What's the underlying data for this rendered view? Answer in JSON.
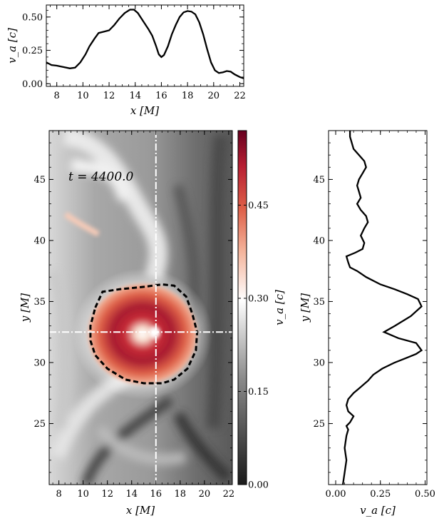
{
  "chart_data": [
    {
      "id": "top",
      "type": "line",
      "xlabel": "x [M]",
      "ylabel": "v_a [c]",
      "xlim": [
        7.2,
        22.3
      ],
      "ylim": [
        -0.02,
        0.59
      ],
      "xticks": [
        8,
        10,
        12,
        14,
        16,
        18,
        20,
        22
      ],
      "xtick_labels": [
        "8",
        "10",
        "12",
        "14",
        "16",
        "18",
        "20",
        "22"
      ],
      "yticks": [
        0.0,
        0.25,
        0.5
      ],
      "ytick_labels": [
        "0.00",
        "0.25",
        "0.50"
      ],
      "series": [
        {
          "x": [
            7.2,
            7.6,
            8.0,
            8.5,
            9.0,
            9.4,
            9.8,
            10.2,
            10.5,
            10.9,
            11.2,
            11.6,
            12.0,
            12.4,
            12.8,
            13.2,
            13.6,
            13.9,
            14.2,
            14.6,
            15.0,
            15.3,
            15.6,
            15.8,
            16.0,
            16.2,
            16.5,
            16.8,
            17.1,
            17.4,
            17.7,
            18.0,
            18.3,
            18.6,
            18.9,
            19.2,
            19.5,
            19.8,
            20.1,
            20.4,
            20.7,
            21.0,
            21.3,
            21.6,
            22.0,
            22.3
          ],
          "y": [
            0.16,
            0.14,
            0.135,
            0.125,
            0.115,
            0.12,
            0.16,
            0.22,
            0.28,
            0.34,
            0.38,
            0.39,
            0.4,
            0.44,
            0.49,
            0.53,
            0.555,
            0.555,
            0.53,
            0.47,
            0.41,
            0.36,
            0.28,
            0.22,
            0.2,
            0.215,
            0.28,
            0.37,
            0.44,
            0.5,
            0.535,
            0.545,
            0.54,
            0.52,
            0.46,
            0.37,
            0.26,
            0.16,
            0.1,
            0.08,
            0.085,
            0.095,
            0.09,
            0.07,
            0.05,
            0.04
          ]
        }
      ]
    },
    {
      "id": "main",
      "type": "heatmap",
      "xlabel": "x [M]",
      "ylabel": "y [M]",
      "xlim": [
        7.2,
        22.3
      ],
      "ylim": [
        20.0,
        49.0
      ],
      "xticks": [
        8,
        10,
        12,
        14,
        16,
        18,
        20,
        22
      ],
      "xtick_labels": [
        "8",
        "10",
        "12",
        "14",
        "16",
        "18",
        "20",
        "22"
      ],
      "yticks": [
        25,
        30,
        35,
        40,
        45
      ],
      "ytick_labels": [
        "25",
        "30",
        "35",
        "40",
        "45"
      ],
      "annotation": "t = 4400.0",
      "crosshair": {
        "x": 16.0,
        "y": 32.5
      },
      "contour": {
        "x": [
          11.0,
          11.6,
          13.0,
          15.0,
          16.5,
          17.5,
          18.5,
          19.0,
          19.4,
          19.3,
          18.6,
          17.5,
          16.5,
          15.0,
          13.5,
          12.0,
          11.0,
          10.6,
          10.6,
          11.0
        ],
        "y": [
          34.5,
          35.8,
          36.0,
          36.2,
          36.4,
          36.3,
          35.4,
          34.0,
          32.5,
          31.0,
          29.5,
          28.6,
          28.3,
          28.3,
          28.6,
          29.5,
          30.6,
          31.8,
          33.0,
          34.5
        ]
      }
    },
    {
      "id": "colorbar",
      "type": "colorbar",
      "label": "v_a [c]",
      "lim": [
        0.0,
        0.57
      ],
      "ticks": [
        0.0,
        0.15,
        0.3,
        0.45
      ],
      "tick_labels": [
        "0.00",
        "0.15",
        "0.30",
        "0.45"
      ],
      "colors": [
        "#1a1a1a",
        "#7a7a7a",
        "#ffffff",
        "#f2a888",
        "#de5f48",
        "#b71e32",
        "#67001f"
      ]
    },
    {
      "id": "right",
      "type": "line",
      "xlabel": "v_a [c]",
      "ylabel": "y [M]",
      "xlim": [
        -0.04,
        0.51
      ],
      "ylim": [
        20.0,
        49.0
      ],
      "xticks": [
        0.0,
        0.25,
        0.5
      ],
      "xtick_labels": [
        "0.00",
        "0.25",
        "0.50"
      ],
      "yticks": [
        25,
        30,
        35,
        40,
        45
      ],
      "ytick_labels": [
        "25",
        "30",
        "35",
        "40",
        "45"
      ],
      "series": [
        {
          "x": [
            0.04,
            0.05,
            0.06,
            0.05,
            0.06,
            0.07,
            0.06,
            0.08,
            0.1,
            0.07,
            0.06,
            0.07,
            0.1,
            0.14,
            0.18,
            0.21,
            0.26,
            0.33,
            0.4,
            0.45,
            0.48,
            0.45,
            0.35,
            0.27,
            0.33,
            0.42,
            0.48,
            0.46,
            0.4,
            0.33,
            0.25,
            0.17,
            0.12,
            0.08,
            0.07,
            0.06,
            0.11,
            0.15,
            0.16,
            0.14,
            0.16,
            0.18,
            0.17,
            0.14,
            0.12,
            0.14,
            0.13,
            0.12,
            0.13,
            0.15,
            0.17,
            0.16,
            0.13,
            0.1,
            0.09,
            0.08,
            0.08
          ],
          "y": [
            20.0,
            21.0,
            22.0,
            23.0,
            24.0,
            24.5,
            24.8,
            25.1,
            25.6,
            26.0,
            26.5,
            27.0,
            27.5,
            28.0,
            28.5,
            29.0,
            29.5,
            30.0,
            30.4,
            30.7,
            31.0,
            31.6,
            32.0,
            32.5,
            33.0,
            33.8,
            34.6,
            35.2,
            35.6,
            36.0,
            36.4,
            37.0,
            37.5,
            37.8,
            38.2,
            38.7,
            39.0,
            39.3,
            39.8,
            40.4,
            41.0,
            41.5,
            42.0,
            42.5,
            43.0,
            43.5,
            44.0,
            44.5,
            45.0,
            45.5,
            46.0,
            46.5,
            47.0,
            47.5,
            48.0,
            48.5,
            49.0
          ]
        }
      ]
    }
  ]
}
